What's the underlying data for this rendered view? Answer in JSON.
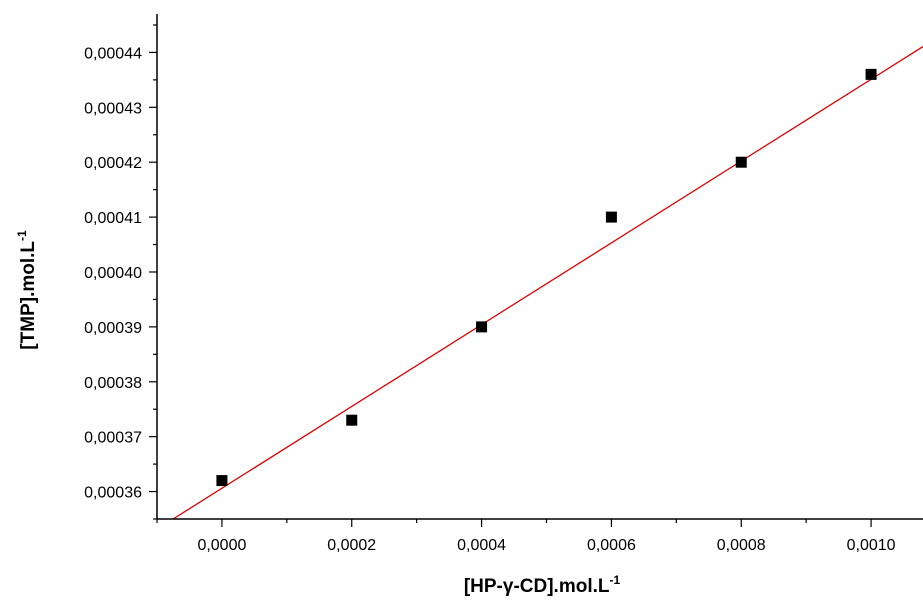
{
  "chart_data": {
    "type": "scatter",
    "title": "",
    "xlabel": "[HP-γ-CD].mol.L",
    "xlabel_sup": "-1",
    "ylabel": "[TMP].mol.L",
    "ylabel_sup": "-1",
    "xlim": [
      -0.0001,
      0.00108
    ],
    "ylim": [
      0.000355,
      0.000447
    ],
    "x_ticks": [
      0.0,
      0.0002,
      0.0004,
      0.0006,
      0.0008,
      0.001
    ],
    "x_tick_labels": [
      "0,0000",
      "0,0002",
      "0,0004",
      "0,0006",
      "0,0008",
      "0,0010"
    ],
    "y_ticks": [
      0.00036,
      0.00037,
      0.00038,
      0.00039,
      0.0004,
      0.00041,
      0.00042,
      0.00043,
      0.00044
    ],
    "y_tick_labels": [
      "0,00036",
      "0,00037",
      "0,00038",
      "0,00039",
      "0,00040",
      "0,00041",
      "0,00042",
      "0,00043",
      "0,00044"
    ],
    "grid": false,
    "series": [
      {
        "marker": "square",
        "color": "#000000",
        "points": [
          {
            "x": 0.0,
            "y": 0.000362
          },
          {
            "x": 0.0002,
            "y": 0.000373
          },
          {
            "x": 0.0004,
            "y": 0.00039
          },
          {
            "x": 0.0006,
            "y": 0.00041
          },
          {
            "x": 0.0008,
            "y": 0.00042
          },
          {
            "x": 0.001,
            "y": 0.000436
          }
        ]
      }
    ],
    "fit_line": {
      "type": "linear",
      "color": "#dd0000",
      "slope": 0.0745,
      "intercept": 0.0003606
    }
  }
}
